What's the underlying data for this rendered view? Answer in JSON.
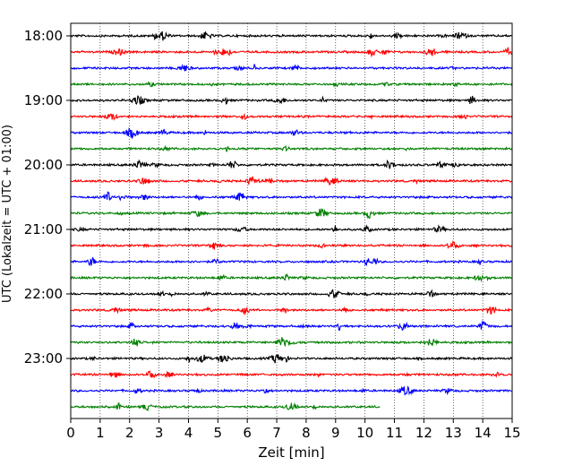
{
  "chart_data": {
    "type": "line",
    "subtype": "helicorder",
    "xlabel": "Zeit  [min]",
    "ylabel": "UTC (Lokalzeit = UTC + 01:00)",
    "xlim": [
      0,
      15
    ],
    "x_ticks": [
      "0",
      "1",
      "2",
      "3",
      "4",
      "5",
      "6",
      "7",
      "8",
      "9",
      "10",
      "11",
      "12",
      "13",
      "14",
      "15"
    ],
    "y_tick_labels": [
      "18:00",
      "19:00",
      "20:00",
      "21:00",
      "22:00",
      "23:00"
    ],
    "y_tick_rows": [
      0,
      4,
      8,
      12,
      16,
      20
    ],
    "row_interval_minutes": 15,
    "row_count": 24,
    "last_row_end_minute": 10.5,
    "grid": "vertical dotted lines at each minute",
    "series_colors": [
      "#000000",
      "#ff0000",
      "#0000ff",
      "#008000"
    ]
  }
}
